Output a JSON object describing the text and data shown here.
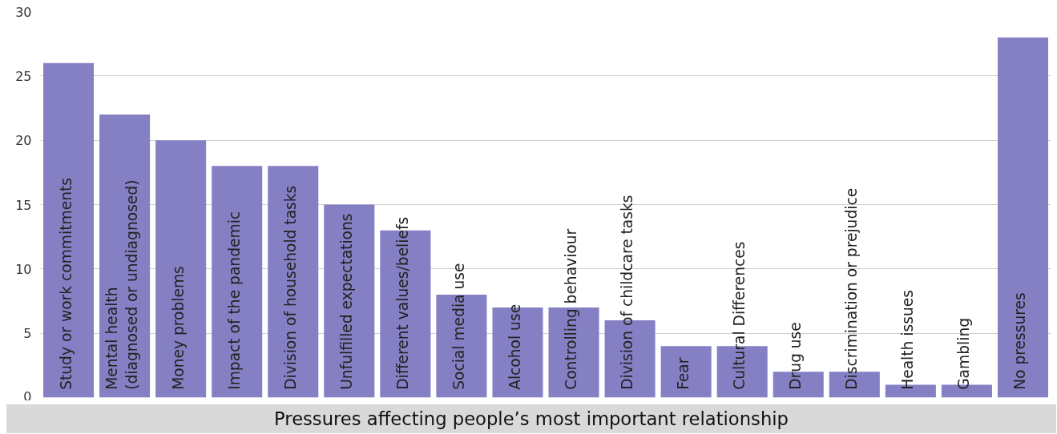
{
  "chart_data": {
    "type": "bar",
    "xlabel": "Pressures affecting people’s most important relationship",
    "categories": [
      "Study or work commitments",
      "Mental health\n(diagnosed or undiagnosed)",
      "Money problems",
      "Impact of the pandemic",
      "Division of household tasks",
      "Unfulfilled expectations",
      "Different values/beliefs",
      "Social media use",
      "Alcohol use",
      "Controlling behaviour",
      "Division of childcare tasks",
      "Fear",
      "Cultural Differences",
      "Drug use",
      "Discrimination or prejudice",
      "Health issues",
      "Gambling",
      "No pressures"
    ],
    "values": [
      26,
      22,
      20,
      18,
      18,
      15,
      13,
      8,
      7,
      7,
      6,
      4,
      4,
      2,
      2,
      1,
      1,
      28
    ],
    "color": "#8580c4",
    "ylim": [
      0,
      30
    ],
    "yticks": [
      0,
      5,
      10,
      15,
      20,
      25,
      30
    ],
    "grid": "y"
  }
}
